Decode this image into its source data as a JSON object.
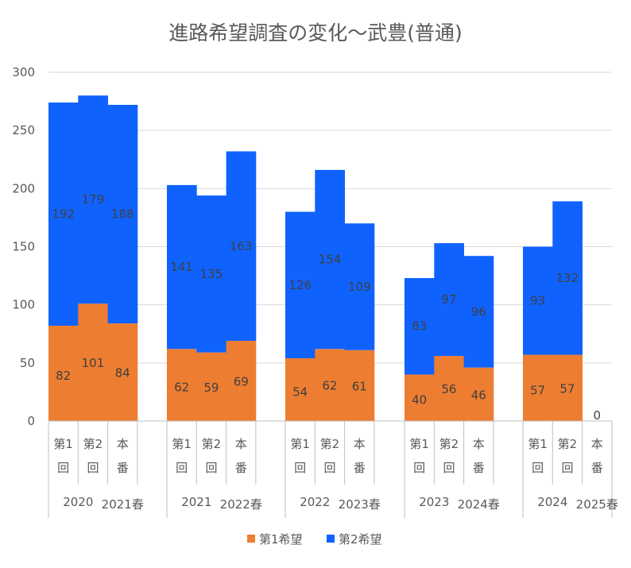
{
  "chart_data": {
    "type": "bar",
    "stacked": true,
    "title": "進路希望調査の変化～武豊(普通)",
    "xlabel": "",
    "ylabel": "",
    "ylim": [
      0,
      300
    ],
    "yticks": [
      0,
      50,
      100,
      150,
      200,
      250,
      300
    ],
    "grid": true,
    "legend_position": "bottom",
    "colors": {
      "series1": "#ED7D31",
      "series2": "#0F62FE",
      "grid": "#D9D9D9",
      "axis": "#BFBFBF"
    },
    "groups": [
      {
        "year": "2020",
        "spring": "2021春",
        "bars": [
          {
            "line1": "第1",
            "line2": "回",
            "values": [
              82,
              192
            ]
          },
          {
            "line1": "第2",
            "line2": "回",
            "values": [
              101,
              179
            ]
          },
          {
            "line1": "本",
            "line2": "番",
            "values": [
              84,
              188
            ]
          }
        ]
      },
      {
        "year": "2021",
        "spring": "2022春",
        "bars": [
          {
            "line1": "第1",
            "line2": "回",
            "values": [
              62,
              141
            ]
          },
          {
            "line1": "第2",
            "line2": "回",
            "values": [
              59,
              135
            ]
          },
          {
            "line1": "本",
            "line2": "番",
            "values": [
              69,
              163
            ]
          }
        ]
      },
      {
        "year": "2022",
        "spring": "2023春",
        "bars": [
          {
            "line1": "第1",
            "line2": "回",
            "values": [
              54,
              126
            ]
          },
          {
            "line1": "第2",
            "line2": "回",
            "values": [
              62,
              154
            ]
          },
          {
            "line1": "本",
            "line2": "番",
            "values": [
              61,
              109
            ]
          }
        ]
      },
      {
        "year": "2023",
        "spring": "2024春",
        "bars": [
          {
            "line1": "第1",
            "line2": "回",
            "values": [
              40,
              83
            ]
          },
          {
            "line1": "第2",
            "line2": "回",
            "values": [
              56,
              97
            ]
          },
          {
            "line1": "本",
            "line2": "番",
            "values": [
              46,
              96
            ]
          }
        ]
      },
      {
        "year": "2024",
        "spring": "2025春",
        "bars": [
          {
            "line1": "第1",
            "line2": "回",
            "values": [
              57,
              93
            ]
          },
          {
            "line1": "第2",
            "line2": "回",
            "values": [
              57,
              132
            ]
          },
          {
            "line1": "本",
            "line2": "番",
            "values": [
              0,
              null
            ],
            "show_zero_label": true
          }
        ]
      }
    ],
    "series": [
      {
        "name": "第1希望",
        "color": "#ED7D31"
      },
      {
        "name": "第2希望",
        "color": "#0F62FE"
      }
    ]
  }
}
